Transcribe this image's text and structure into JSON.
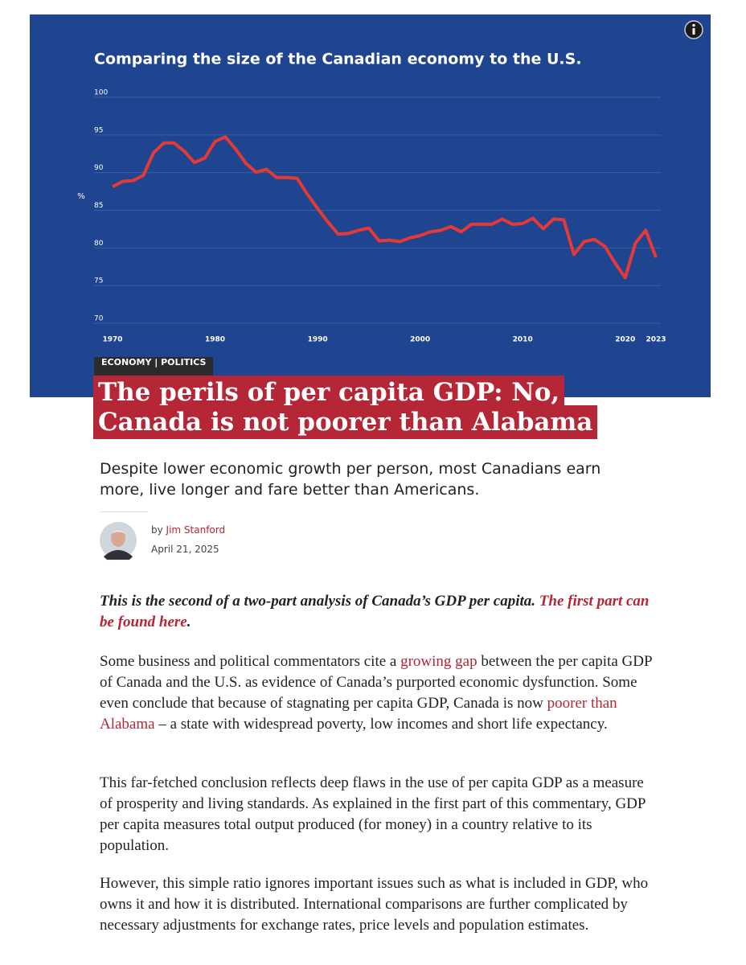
{
  "chart_data": {
    "type": "line",
    "title": "Comparing the size of the Canadian economy to the U.S.",
    "y_label": "%",
    "x": [
      1970,
      1971,
      1972,
      1973,
      1974,
      1975,
      1976,
      1977,
      1978,
      1979,
      1980,
      1981,
      1982,
      1983,
      1984,
      1985,
      1986,
      1987,
      1988,
      1989,
      1990,
      1991,
      1992,
      1993,
      1994,
      1995,
      1996,
      1997,
      1998,
      1999,
      2000,
      2001,
      2002,
      2003,
      2004,
      2005,
      2006,
      2007,
      2008,
      2009,
      2010,
      2011,
      2012,
      2013,
      2014,
      2015,
      2016,
      2017,
      2018,
      2019,
      2020,
      2021,
      2022,
      2023
    ],
    "values": [
      87.5,
      88.2,
      88.3,
      89.0,
      92.0,
      93.3,
      93.3,
      92.2,
      90.7,
      91.3,
      93.5,
      94.1,
      92.5,
      90.6,
      89.4,
      89.8,
      88.7,
      88.7,
      88.6,
      86.5,
      84.6,
      82.8,
      81.2,
      81.3,
      81.7,
      82.0,
      80.3,
      80.4,
      80.2,
      80.7,
      81.0,
      81.5,
      81.7,
      82.2,
      81.5,
      82.5,
      82.5,
      82.5,
      83.2,
      82.5,
      82.6,
      83.3,
      81.9,
      83.2,
      83.1,
      78.5,
      80.2,
      80.5,
      79.6,
      77.4,
      75.4,
      80.0,
      81.7,
      78.1
    ],
    "color": "#e53935",
    "xlim": [
      1970,
      2023
    ],
    "xticks": [
      1970,
      1980,
      1990,
      2000,
      2010,
      2020,
      2023
    ],
    "ylim": [
      70,
      100
    ],
    "yticks": [
      70,
      75,
      80,
      85,
      90,
      95,
      100
    ],
    "grid": true
  },
  "article": {
    "category": "ECONOMY | POLITICS",
    "headline": "The perils of per capita GDP: No, Canada is not poorer than Alabama",
    "dek": "Despite lower economic growth per person, most Canadians earn more, live longer and fare better than Americans.",
    "byline": "by",
    "author": "Jim Stanford",
    "date": "April 21, 2025",
    "intro": [
      {
        "text": "This is the second of a two-part analysis of Canada’s GDP per capita. "
      },
      {
        "link": "The first part can be found here"
      },
      {
        "text": "."
      }
    ],
    "paragraphs": [
      [
        {
          "text": "Some business and political commentators cite a "
        },
        {
          "link": "growing gap"
        },
        {
          "text": " between the per capita GDP of Canada and the U.S. as evidence of Canada’s purported economic dysfunction. Some even conclude that because of stagnating per capita GDP, Canada is now "
        },
        {
          "link": "poorer than Alabama"
        },
        {
          "text": " – a state with widespread poverty, low incomes and short life expectancy."
        }
      ],
      [
        {
          "text": "This far-fetched conclusion reflects deep flaws in the use of per capita GDP as a measure of prosperity and living standards. As explained in the first part of this commentary, GDP per capita measures total output produced (for money) in a country relative to its population."
        }
      ],
      [
        {
          "text": "However, this simple ratio ignores important issues such as what is included in GDP, who owns it and how it is distributed. International comparisons are further complicated by necessary adjustments for exchange rates, price levels and population estimates."
        }
      ]
    ]
  }
}
